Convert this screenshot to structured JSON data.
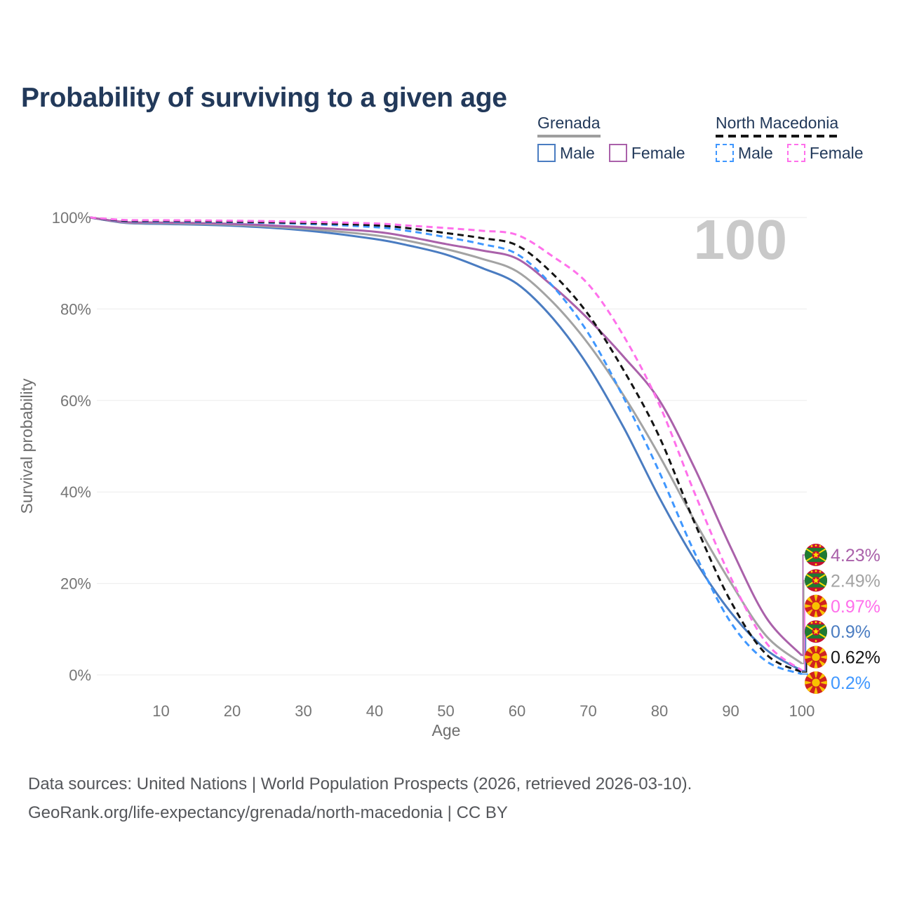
{
  "title": "Probability of surviving to a given age",
  "watermark": "100",
  "legend": {
    "groups": [
      {
        "name": "Grenada",
        "line_style": "solid",
        "underline_color": "#9e9e9e",
        "items": [
          {
            "label": "Male",
            "color": "#4a7cc1"
          },
          {
            "label": "Female",
            "color": "#aa61aa"
          }
        ]
      },
      {
        "name": "North Macedonia",
        "line_style": "dashed",
        "underline_color": "#141414",
        "items": [
          {
            "label": "Male",
            "color": "#3f97ff"
          },
          {
            "label": "Female",
            "color": "#ff70eb"
          }
        ]
      }
    ]
  },
  "axes": {
    "x_label": "Age",
    "y_label": "Survival probability",
    "x_tick_labels": [
      "10",
      "20",
      "30",
      "40",
      "50",
      "60",
      "70",
      "80",
      "90",
      "100"
    ],
    "y_tick_labels": [
      "0%",
      "20%",
      "40%",
      "60%",
      "80%",
      "100%"
    ]
  },
  "chart_data": {
    "type": "line",
    "title": "Probability of surviving to a given age",
    "xlabel": "Age",
    "ylabel": "Survival probability",
    "xlim": [
      0,
      100
    ],
    "ylim": [
      0,
      100
    ],
    "x_ticks": [
      10,
      20,
      30,
      40,
      50,
      60,
      70,
      80,
      90,
      100
    ],
    "y_ticks_percent": [
      0,
      20,
      40,
      60,
      80,
      100
    ],
    "grid": "horizontal",
    "x": [
      0,
      5,
      10,
      20,
      30,
      40,
      45,
      50,
      55,
      60,
      65,
      70,
      75,
      80,
      85,
      90,
      95,
      100
    ],
    "series": [
      {
        "id": "grenada-male",
        "name": "Grenada Male",
        "color": "#4a7cc1",
        "dash": "solid",
        "flag": "grenada",
        "end_label": "0.9%",
        "values": [
          100,
          98.8,
          98.6,
          98.2,
          97.2,
          95.3,
          93.8,
          91.9,
          89.0,
          85.5,
          78.0,
          67.5,
          54.0,
          38.7,
          25.0,
          13.7,
          5.5,
          0.9
        ]
      },
      {
        "id": "grenada-total",
        "name": "Grenada",
        "color": "#a3a3a3",
        "dash": "solid",
        "flag": "grenada",
        "end_label": "2.49%",
        "values": [
          100,
          98.9,
          98.75,
          98.4,
          97.55,
          96.1,
          94.8,
          93.1,
          91.0,
          88.2,
          81.5,
          72.4,
          61.0,
          47.9,
          33.5,
          20.2,
          8.5,
          2.49
        ]
      },
      {
        "id": "grenada-female",
        "name": "Grenada Female",
        "color": "#aa61aa",
        "dash": "solid",
        "flag": "grenada",
        "end_label": "4.23%",
        "values": [
          100,
          99.0,
          98.9,
          98.6,
          97.9,
          96.9,
          95.7,
          94.2,
          92.8,
          91.0,
          85.0,
          77.8,
          69.5,
          60.0,
          45.0,
          27.9,
          12.5,
          4.23
        ]
      },
      {
        "id": "north-macedonia-male",
        "name": "North Macedonia Male",
        "color": "#3f97ff",
        "dash": "dashed",
        "flag": "north-macedonia",
        "end_label": "0.2%",
        "values": [
          100,
          99.2,
          99.1,
          98.95,
          98.6,
          97.9,
          97.0,
          95.7,
          94.2,
          92.0,
          85.0,
          74.7,
          60.5,
          44.3,
          26.5,
          11.5,
          3.0,
          0.2
        ]
      },
      {
        "id": "north-macedonia-total",
        "name": "North Macedonia",
        "color": "#141414",
        "dash": "dashed",
        "flag": "north-macedonia",
        "end_label": "0.62%",
        "values": [
          100,
          99.3,
          99.25,
          99.1,
          98.8,
          98.3,
          97.6,
          96.6,
          95.5,
          93.9,
          87.7,
          78.8,
          66.5,
          52.0,
          33.0,
          16.1,
          4.5,
          0.62
        ]
      },
      {
        "id": "north-macedonia-female",
        "name": "North Macedonia Female",
        "color": "#ff70eb",
        "dash": "dashed",
        "flag": "north-macedonia",
        "end_label": "0.97%",
        "values": [
          100,
          99.45,
          99.4,
          99.3,
          99.05,
          98.7,
          98.2,
          97.7,
          97.1,
          96.2,
          91.5,
          85.4,
          74.0,
          59.0,
          39.5,
          21.3,
          7.0,
          0.97
        ]
      }
    ],
    "legend_position": "top-right"
  },
  "footer": {
    "line1": "Data sources: United Nations | World Population Prospects (2026, retrieved 2026-03-10).",
    "line2": "GeoRank.org/life-expectancy/grenada/north-macedonia | CC BY"
  }
}
